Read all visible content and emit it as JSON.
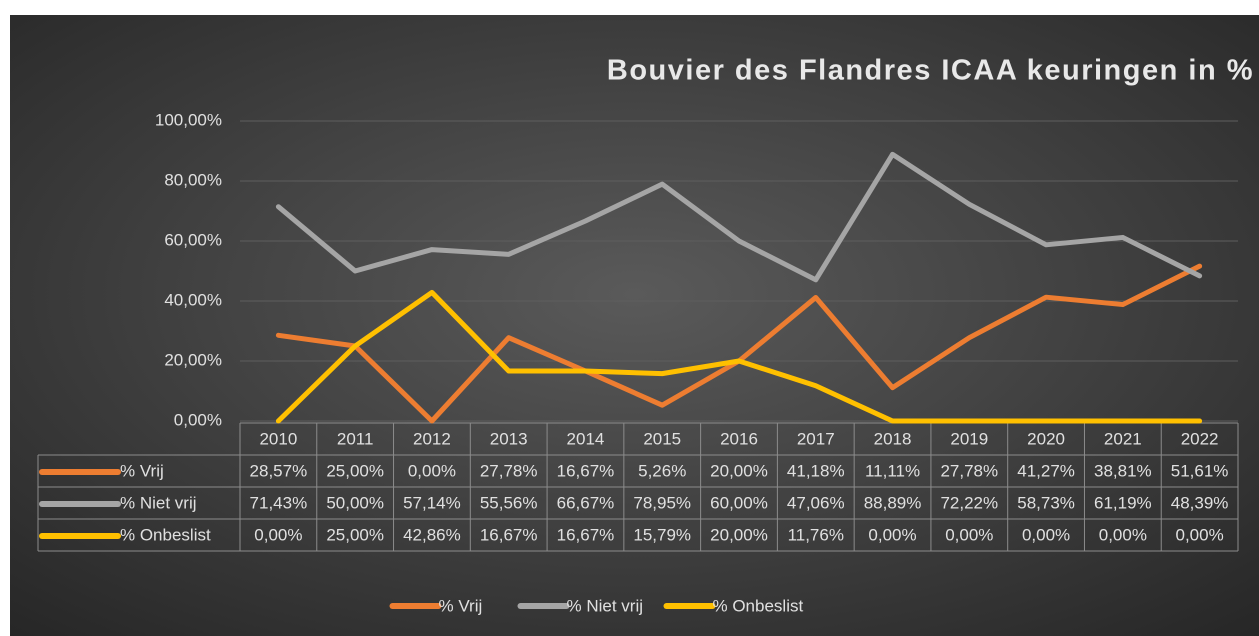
{
  "chart_data": {
    "type": "line",
    "title": "Bouvier des Flandres ICAA keuringen in %",
    "categories": [
      "2010",
      "2011",
      "2012",
      "2013",
      "2014",
      "2015",
      "2016",
      "2017",
      "2018",
      "2019",
      "2020",
      "2021",
      "2022"
    ],
    "series": [
      {
        "name": "% Vrij",
        "color": "#ed7d31",
        "values": [
          28.57,
          25.0,
          0.0,
          27.78,
          16.67,
          5.26,
          20.0,
          41.18,
          11.11,
          27.78,
          41.27,
          38.81,
          51.61
        ],
        "value_labels": [
          "28,57%",
          "25,00%",
          "0,00%",
          "27,78%",
          "16,67%",
          "5,26%",
          "20,00%",
          "41,18%",
          "11,11%",
          "27,78%",
          "41,27%",
          "38,81%",
          "51,61%"
        ]
      },
      {
        "name": "% Niet vrij",
        "color": "#a5a5a5",
        "values": [
          71.43,
          50.0,
          57.14,
          55.56,
          66.67,
          78.95,
          60.0,
          47.06,
          88.89,
          72.22,
          58.73,
          61.19,
          48.39
        ],
        "value_labels": [
          "71,43%",
          "50,00%",
          "57,14%",
          "55,56%",
          "66,67%",
          "78,95%",
          "60,00%",
          "47,06%",
          "88,89%",
          "72,22%",
          "58,73%",
          "61,19%",
          "48,39%"
        ]
      },
      {
        "name": "% Onbeslist",
        "color": "#ffc000",
        "values": [
          0.0,
          25.0,
          42.86,
          16.67,
          16.67,
          15.79,
          20.0,
          11.76,
          0.0,
          0.0,
          0.0,
          0.0,
          0.0
        ],
        "value_labels": [
          "0,00%",
          "25,00%",
          "42,86%",
          "16,67%",
          "16,67%",
          "15,79%",
          "20,00%",
          "11,76%",
          "0,00%",
          "0,00%",
          "0,00%",
          "0,00%",
          "0,00%"
        ]
      }
    ],
    "ylim": [
      0,
      100
    ],
    "yticks": [
      {
        "value": 0,
        "label": "0,00%"
      },
      {
        "value": 20,
        "label": "20,00%"
      },
      {
        "value": 40,
        "label": "40,00%"
      },
      {
        "value": 60,
        "label": "60,00%"
      },
      {
        "value": 80,
        "label": "80,00%"
      },
      {
        "value": 100,
        "label": "100,00%"
      }
    ],
    "grid": true,
    "legend": "bottom"
  }
}
